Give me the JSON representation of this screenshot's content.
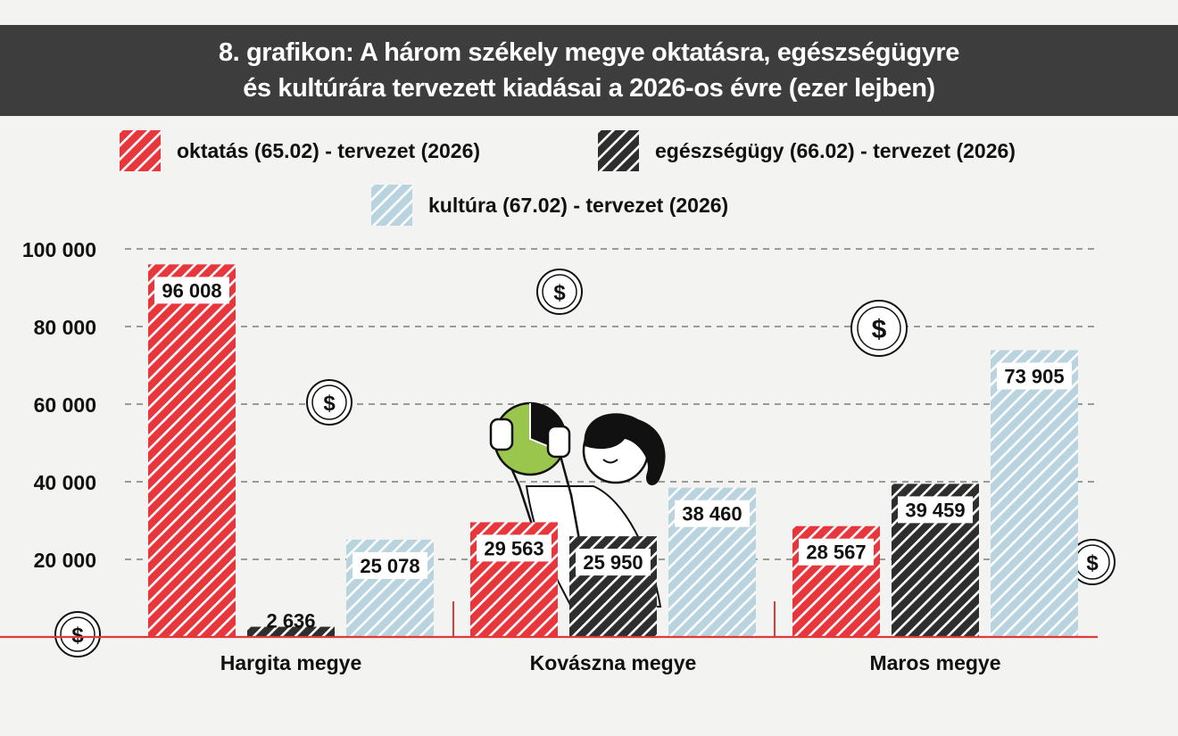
{
  "title": {
    "line1": "8. grafikon: A három székely megye oktatásra, egészségügyre",
    "line2": "és kultúrára tervezett kiadásai a 2026-os évre (ezer lejben)"
  },
  "colors": {
    "oktatas": "#e8363d",
    "egeszsegugy": "#2e2e2e",
    "kultura": "#b9d4df",
    "title_bg": "#3d3d3d",
    "axis": "#e03a3a"
  },
  "chart_data": {
    "type": "bar",
    "categories": [
      "Hargita megye",
      "Kovászna megye",
      "Maros megye"
    ],
    "series": [
      {
        "name": "oktatás (65.02) - tervezet (2026)",
        "values": [
          96008,
          29563,
          28567
        ],
        "labels": [
          "96 008",
          "29 563",
          "28 567"
        ]
      },
      {
        "name": "egészségügy (66.02) - tervezet (2026)",
        "values": [
          2636,
          25950,
          39459
        ],
        "labels": [
          "2 636",
          "25 950",
          "39 459"
        ]
      },
      {
        "name": "kultúra (67.02) - tervezet (2026)",
        "values": [
          25078,
          38460,
          73905
        ],
        "labels": [
          "25 078",
          "38 460",
          "73 905"
        ]
      }
    ],
    "yticks": [
      20000,
      40000,
      60000,
      80000,
      100000
    ],
    "ytick_labels": [
      "20 000",
      "40 000",
      "60 000",
      "80 000",
      "100 000"
    ],
    "ylim": [
      0,
      100000
    ],
    "grid": "dashed horizontal",
    "legend_position": "top"
  }
}
